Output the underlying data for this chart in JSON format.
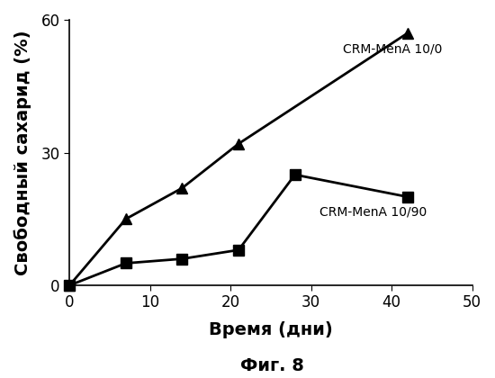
{
  "series": [
    {
      "label": "CRM-MenA 10/0",
      "x": [
        0,
        7,
        14,
        21,
        42
      ],
      "y": [
        0,
        15,
        22,
        32,
        57
      ],
      "marker": "^",
      "markersize": 8,
      "linewidth": 2.0,
      "color": "#000000"
    },
    {
      "label": "CRM-MenA 10/90",
      "x": [
        0,
        7,
        14,
        21,
        28,
        42
      ],
      "y": [
        0,
        5,
        6,
        8,
        25,
        20
      ],
      "marker": "s",
      "markersize": 8,
      "linewidth": 2.0,
      "color": "#000000"
    }
  ],
  "xlabel": "Время (дни)",
  "ylabel": "Свободный сахарид (%)",
  "xlim": [
    0,
    50
  ],
  "ylim": [
    0,
    60
  ],
  "xticks": [
    0,
    10,
    20,
    30,
    40,
    50
  ],
  "yticks": [
    0,
    30,
    60
  ],
  "figure_title": "Фиг. 8",
  "ann1_text": "CRM-MenA 10/0",
  "ann1_x": 34,
  "ann1_y": 52,
  "ann2_text": "CRM-MenA 10/90",
  "ann2_x": 31,
  "ann2_y": 18,
  "background_color": "#ffffff",
  "tick_fontsize": 12,
  "label_fontsize": 14,
  "annot_fontsize": 10,
  "figure_title_fontsize": 14
}
